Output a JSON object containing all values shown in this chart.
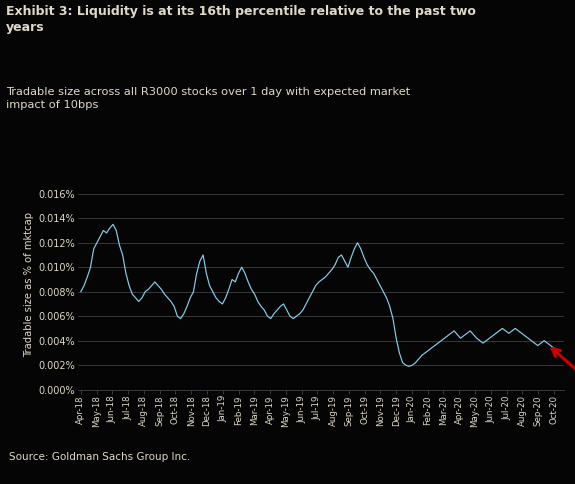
{
  "title_bold": "Exhibit 3: Liquidity is at its 16th percentile relative to the past two\nyears",
  "title_sub": "Tradable size across all R3000 stocks over 1 day with expected market\nimpact of 10bps",
  "ylabel": "Tradable size as % of mktcap",
  "source": "Source: Goldman Sachs Group Inc.",
  "background_color": "#050505",
  "text_color": "#e0d8c8",
  "line_color": "#87ceeb",
  "grid_color": "#444444",
  "arrow_color": "#cc0000",
  "ylim": [
    0,
    0.000172
  ],
  "yticks": [
    0.0,
    2e-05,
    4e-05,
    6e-05,
    8e-05,
    0.0001,
    0.00012,
    0.00014,
    0.00016
  ],
  "ytick_labels": [
    "0.000%",
    "0.002%",
    "0.004%",
    "0.006%",
    "0.008%",
    "0.010%",
    "0.012%",
    "0.014%",
    "0.016%"
  ],
  "xtick_labels": [
    "Apr-18",
    "May-18",
    "Jun-18",
    "Jul-18",
    "Aug-18",
    "Sep-18",
    "Oct-18",
    "Nov-18",
    "Dec-18",
    "Jan-19",
    "Feb-19",
    "Mar-19",
    "Apr-19",
    "May-19",
    "Jun-19",
    "Jul-19",
    "Aug-19",
    "Sep-19",
    "Oct-19",
    "Nov-19",
    "Dec-19",
    "Jan-20",
    "Feb-20",
    "Mar-20",
    "Apr-20",
    "May-20",
    "Jun-20",
    "Jul-20",
    "Aug-20",
    "Sep-20",
    "Oct-20"
  ],
  "y_values": [
    8e-05,
    8.5e-05,
    9.2e-05,
    0.0001,
    0.000115,
    0.00012,
    0.000125,
    0.00013,
    0.000128,
    0.000132,
    0.000135,
    0.00013,
    0.000118,
    0.00011,
    9.5e-05,
    8.5e-05,
    7.8e-05,
    7.5e-05,
    7.2e-05,
    7.5e-05,
    8e-05,
    8.2e-05,
    8.5e-05,
    8.8e-05,
    8.5e-05,
    8.2e-05,
    7.8e-05,
    7.5e-05,
    7.2e-05,
    6.8e-05,
    6e-05,
    5.8e-05,
    6.2e-05,
    6.8e-05,
    7.5e-05,
    8e-05,
    9.5e-05,
    0.000105,
    0.00011,
    9.5e-05,
    8.5e-05,
    8e-05,
    7.5e-05,
    7.2e-05,
    7e-05,
    7.5e-05,
    8.2e-05,
    9e-05,
    8.8e-05,
    9.5e-05,
    0.0001,
    9.5e-05,
    8.8e-05,
    8.2e-05,
    7.8e-05,
    7.2e-05,
    6.8e-05,
    6.5e-05,
    6e-05,
    5.8e-05,
    6.2e-05,
    6.5e-05,
    6.8e-05,
    7e-05,
    6.5e-05,
    6e-05,
    5.8e-05,
    6e-05,
    6.2e-05,
    6.5e-05,
    7e-05,
    7.5e-05,
    8e-05,
    8.5e-05,
    8.8e-05,
    9e-05,
    9.2e-05,
    9.5e-05,
    9.8e-05,
    0.000102,
    0.000108,
    0.00011,
    0.000105,
    0.0001,
    0.000108,
    0.000115,
    0.00012,
    0.000115,
    0.000108,
    0.000102,
    9.8e-05,
    9.5e-05,
    9e-05,
    8.5e-05,
    8e-05,
    7.5e-05,
    6.8e-05,
    5.8e-05,
    4.2e-05,
    3e-05,
    2.2e-05,
    2e-05,
    1.9e-05,
    2e-05,
    2.2e-05,
    2.5e-05,
    2.8e-05,
    3e-05,
    3.2e-05,
    3.4e-05,
    3.6e-05,
    3.8e-05,
    4e-05,
    4.2e-05,
    4.4e-05,
    4.6e-05,
    4.8e-05,
    4.5e-05,
    4.2e-05,
    4.4e-05,
    4.6e-05,
    4.8e-05,
    4.5e-05,
    4.2e-05,
    4e-05,
    3.8e-05,
    4e-05,
    4.2e-05,
    4.4e-05,
    4.6e-05,
    4.8e-05,
    5e-05,
    4.8e-05,
    4.6e-05,
    4.8e-05,
    5e-05,
    4.8e-05,
    4.6e-05,
    4.4e-05,
    4.2e-05,
    4e-05,
    3.8e-05,
    3.6e-05,
    3.8e-05,
    4e-05,
    3.8e-05,
    3.6e-05,
    3.4e-05
  ],
  "figsize": [
    5.75,
    4.84
  ],
  "dpi": 100
}
